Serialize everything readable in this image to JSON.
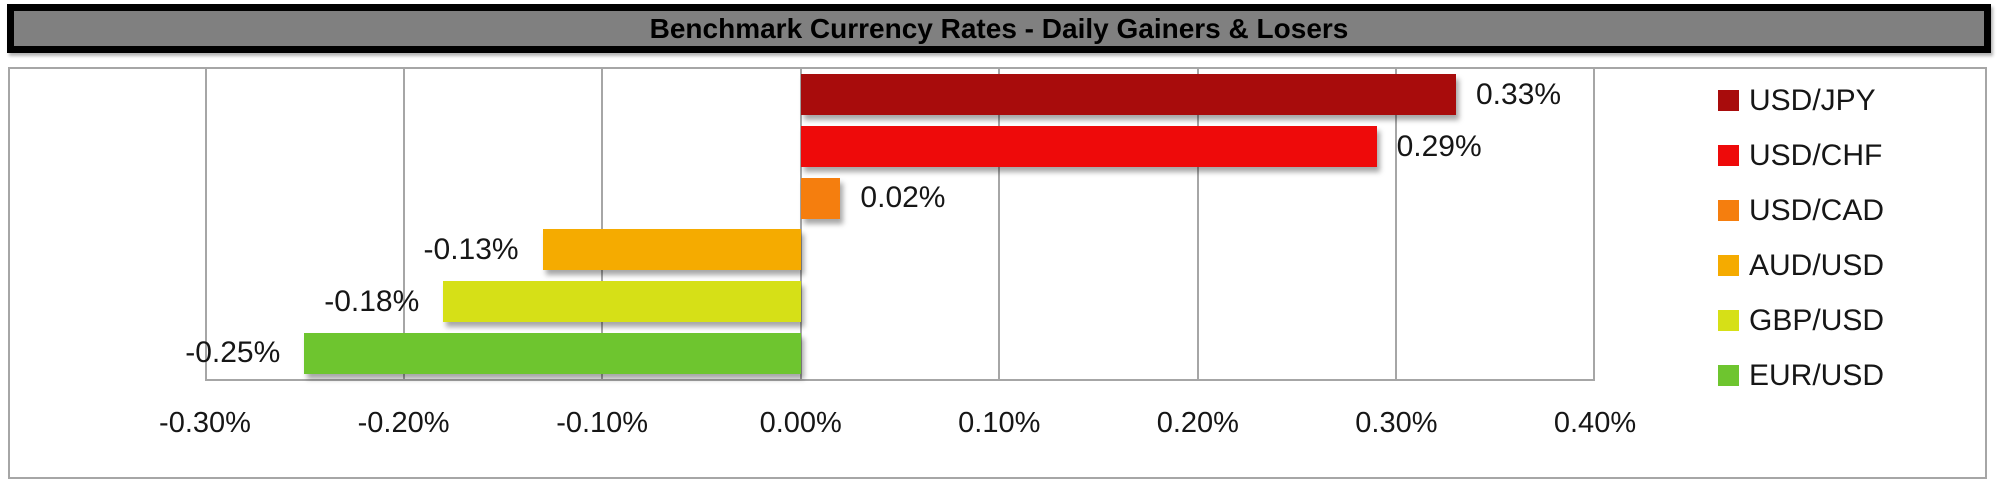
{
  "title": "Benchmark Currency Rates - Daily Gainers & Losers",
  "colors": {
    "title_bg": "#808080",
    "title_border": "#000000",
    "title_text": "#000000",
    "frame_border": "#a6a6a6",
    "gridline": "#a6a6a6",
    "label_text": "#161616",
    "background": "#ffffff"
  },
  "chart_data": {
    "type": "bar",
    "orientation": "horizontal",
    "title": "Benchmark Currency Rates - Daily Gainers & Losers",
    "categories": [
      "USD/JPY",
      "USD/CHF",
      "USD/CAD",
      "AUD/USD",
      "GBP/USD",
      "EUR/USD"
    ],
    "values": [
      0.33,
      0.29,
      0.02,
      -0.13,
      -0.18,
      -0.25
    ],
    "data_labels": [
      "0.33%",
      "0.29%",
      "0.02%",
      "-0.13%",
      "-0.18%",
      "-0.25%"
    ],
    "series_colors": [
      "#a80c0c",
      "#ee0a0a",
      "#f57e0e",
      "#f5ab00",
      "#d6e017",
      "#6ec52f"
    ],
    "xlabel": "",
    "ylabel": "",
    "x_axis": {
      "min": -0.3,
      "max": 0.4,
      "step": 0.1,
      "tick_labels": [
        "-0.30%",
        "-0.20%",
        "-0.10%",
        "0.00%",
        "0.10%",
        "0.20%",
        "0.30%",
        "0.40%"
      ]
    },
    "grid": true,
    "legend": {
      "position": "right",
      "entries": [
        {
          "label": "USD/JPY",
          "color": "#a80c0c"
        },
        {
          "label": "USD/CHF",
          "color": "#ee0a0a"
        },
        {
          "label": "USD/CAD",
          "color": "#f57e0e"
        },
        {
          "label": "AUD/USD",
          "color": "#f5ab00"
        },
        {
          "label": "GBP/USD",
          "color": "#d6e017"
        },
        {
          "label": "EUR/USD",
          "color": "#6ec52f"
        }
      ]
    }
  }
}
